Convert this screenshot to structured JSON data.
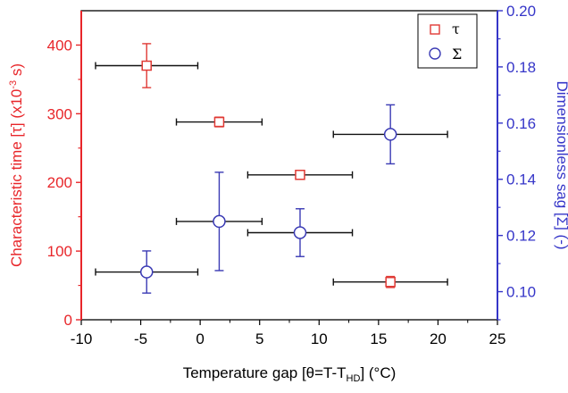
{
  "chart_data": {
    "type": "scatter",
    "xlabel": "Temperature gap [θ=T-T",
    "xlabel_sub": "HD",
    "xlabel_tail": "] (°C)",
    "ylabel_left": "Characteristic time [τ] (x10",
    "ylabel_left_sup": "-3",
    "ylabel_left_tail": " s)",
    "ylabel_right": "Dimensionless sag [Σ] (-)",
    "xlim": [
      -10,
      25
    ],
    "ylim_left": [
      0,
      450
    ],
    "ylim_right": [
      0.09,
      0.2
    ],
    "x_ticks": [
      "-10",
      "-5",
      "0",
      "5",
      "10",
      "15",
      "20",
      "25"
    ],
    "y_left_ticks": [
      "0",
      "100",
      "200",
      "300",
      "400"
    ],
    "y_right_ticks": [
      "0.10",
      "0.12",
      "0.14",
      "0.16",
      "0.18",
      "0.20"
    ],
    "legend_position": "top-right",
    "left_axis_color": "#e8262a",
    "right_axis_color": "#3535c8",
    "series": [
      {
        "name": "τ",
        "axis": "left",
        "marker": "square",
        "color": "#e03a35",
        "points": [
          {
            "x": -4.5,
            "y": 370,
            "xerr": 4.3,
            "yerr": 32
          },
          {
            "x": 1.6,
            "y": 288,
            "xerr": 3.6,
            "yerr": 7
          },
          {
            "x": 8.4,
            "y": 211,
            "xerr": 4.4,
            "yerr": 3
          },
          {
            "x": 16.0,
            "y": 55,
            "xerr": 4.8,
            "yerr": 8
          }
        ]
      },
      {
        "name": "Σ",
        "axis": "right",
        "marker": "circle",
        "color": "#3a3ab4",
        "points": [
          {
            "x": -4.5,
            "y": 0.107,
            "xerr": 4.3,
            "yerr": 0.0075
          },
          {
            "x": 1.6,
            "y": 0.125,
            "xerr": 3.6,
            "yerr": 0.0175
          },
          {
            "x": 8.4,
            "y": 0.121,
            "xerr": 4.4,
            "yerr": 0.0085
          },
          {
            "x": 16.0,
            "y": 0.156,
            "xerr": 4.8,
            "yerr": 0.0105
          }
        ]
      }
    ]
  }
}
